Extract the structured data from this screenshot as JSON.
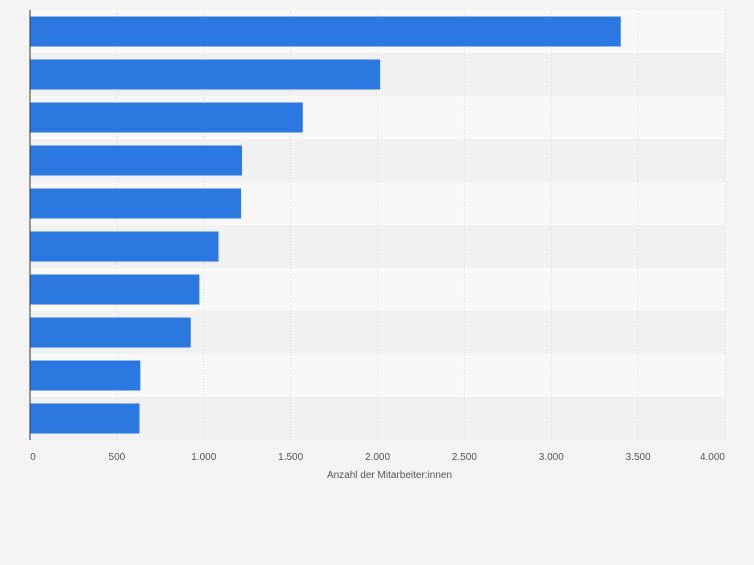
{
  "colors": {
    "bar": "#2a78e0",
    "background": "#f4f4f4",
    "band_light": "#f8f8f8",
    "band_dark": "#f1f1f1",
    "grid": "#dcdcdc",
    "axis": "#333333",
    "tick_label": "#555555"
  },
  "chart_data": {
    "type": "bar",
    "orientation": "horizontal",
    "title": "",
    "xlabel": "Anzahl der Mitarbeiter:innen",
    "ylabel": "",
    "categories": [
      "",
      "",
      "",
      "",
      "",
      "",
      "",
      "",
      "",
      ""
    ],
    "values": [
      3400,
      2015,
      1570,
      1220,
      1215,
      1085,
      975,
      925,
      635,
      630
    ],
    "xlim": [
      0,
      4000
    ],
    "x_ticks": [
      0,
      500,
      1000,
      1500,
      2000,
      2500,
      3000,
      3500,
      4000
    ],
    "x_tick_labels": [
      "0",
      "500",
      "1.000",
      "1.500",
      "2.000",
      "2.500",
      "3.000",
      "3.500",
      "4.000"
    ],
    "grid": true
  }
}
